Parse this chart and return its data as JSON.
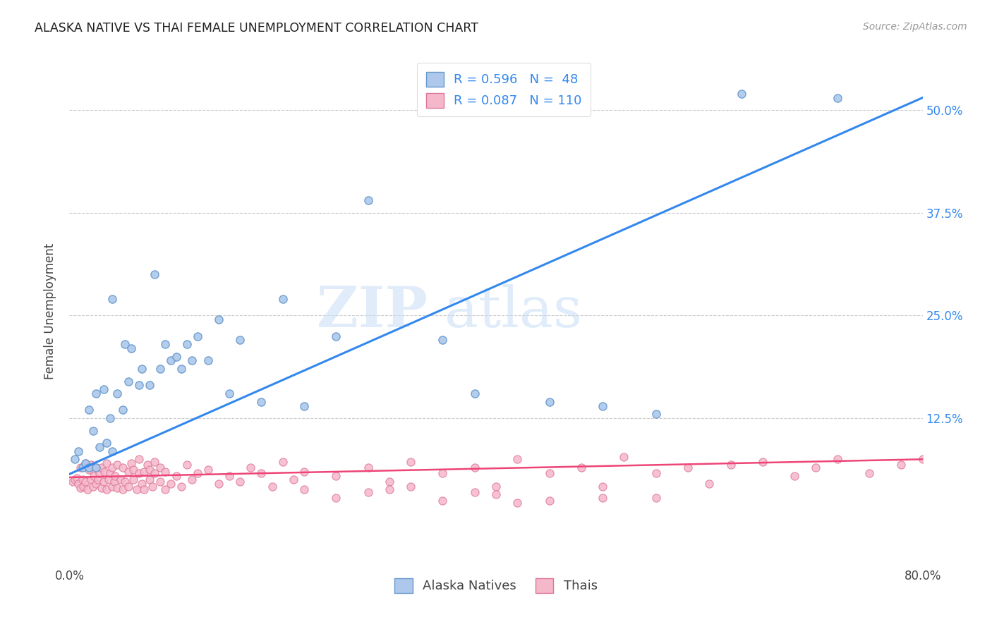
{
  "title": "ALASKA NATIVE VS THAI FEMALE UNEMPLOYMENT CORRELATION CHART",
  "source": "Source: ZipAtlas.com",
  "ylabel": "Female Unemployment",
  "xlim": [
    0.0,
    0.8
  ],
  "ylim": [
    -0.055,
    0.565
  ],
  "xticks": [
    0.0,
    0.2,
    0.4,
    0.6,
    0.8
  ],
  "xtick_labels": [
    "0.0%",
    "",
    "",
    "",
    "80.0%"
  ],
  "ytick_labels": [
    "12.5%",
    "25.0%",
    "37.5%",
    "50.0%"
  ],
  "ytick_vals": [
    0.125,
    0.25,
    0.375,
    0.5
  ],
  "alaska_color": "#adc8ea",
  "alaska_edge": "#6699cc",
  "thai_color": "#f5b8ca",
  "thai_edge": "#dd7799",
  "line_alaska_color": "#3388ee",
  "line_thai_color": "#ee4477",
  "alaska_R": 0.596,
  "alaska_N": 48,
  "thai_R": 0.087,
  "thai_N": 110,
  "legend_label_alaska": "Alaska Natives",
  "legend_label_thai": "Thais",
  "watermark_zip": "ZIP",
  "watermark_atlas": "atlas",
  "alaska_line_x0": 0.0,
  "alaska_line_y0": 0.057,
  "alaska_line_x1": 0.8,
  "alaska_line_y1": 0.515,
  "thai_line_x0": 0.0,
  "thai_line_y0": 0.053,
  "thai_line_x1": 0.8,
  "thai_line_y1": 0.075,
  "alaska_x": [
    0.005,
    0.008,
    0.012,
    0.015,
    0.018,
    0.018,
    0.022,
    0.025,
    0.025,
    0.028,
    0.032,
    0.035,
    0.038,
    0.04,
    0.04,
    0.045,
    0.05,
    0.052,
    0.055,
    0.058,
    0.065,
    0.068,
    0.075,
    0.08,
    0.085,
    0.09,
    0.095,
    0.1,
    0.105,
    0.11,
    0.115,
    0.12,
    0.13,
    0.14,
    0.15,
    0.16,
    0.18,
    0.2,
    0.22,
    0.25,
    0.28,
    0.35,
    0.38,
    0.45,
    0.5,
    0.55,
    0.63,
    0.72
  ],
  "alaska_y": [
    0.075,
    0.085,
    0.065,
    0.07,
    0.065,
    0.135,
    0.11,
    0.065,
    0.155,
    0.09,
    0.16,
    0.095,
    0.125,
    0.085,
    0.27,
    0.155,
    0.135,
    0.215,
    0.17,
    0.21,
    0.165,
    0.185,
    0.165,
    0.3,
    0.185,
    0.215,
    0.195,
    0.2,
    0.185,
    0.215,
    0.195,
    0.225,
    0.195,
    0.245,
    0.155,
    0.22,
    0.145,
    0.27,
    0.14,
    0.225,
    0.39,
    0.22,
    0.155,
    0.145,
    0.14,
    0.13,
    0.52,
    0.515
  ],
  "thai_x": [
    0.003,
    0.005,
    0.007,
    0.008,
    0.01,
    0.01,
    0.012,
    0.013,
    0.015,
    0.015,
    0.017,
    0.018,
    0.02,
    0.02,
    0.022,
    0.023,
    0.025,
    0.025,
    0.027,
    0.028,
    0.03,
    0.03,
    0.032,
    0.033,
    0.035,
    0.035,
    0.037,
    0.038,
    0.04,
    0.04,
    0.042,
    0.043,
    0.045,
    0.045,
    0.048,
    0.05,
    0.05,
    0.052,
    0.055,
    0.055,
    0.058,
    0.06,
    0.06,
    0.063,
    0.065,
    0.065,
    0.068,
    0.07,
    0.07,
    0.073,
    0.075,
    0.075,
    0.078,
    0.08,
    0.08,
    0.085,
    0.085,
    0.09,
    0.09,
    0.095,
    0.1,
    0.105,
    0.11,
    0.115,
    0.12,
    0.13,
    0.14,
    0.15,
    0.16,
    0.17,
    0.18,
    0.19,
    0.2,
    0.21,
    0.22,
    0.25,
    0.28,
    0.3,
    0.32,
    0.35,
    0.38,
    0.4,
    0.42,
    0.45,
    0.48,
    0.5,
    0.52,
    0.55,
    0.58,
    0.62,
    0.65,
    0.68,
    0.7,
    0.72,
    0.75,
    0.78,
    0.8,
    0.35,
    0.4,
    0.25,
    0.3,
    0.45,
    0.38,
    0.55,
    0.32,
    0.42,
    0.28,
    0.22,
    0.5,
    0.6
  ],
  "thai_y": [
    0.048,
    0.05,
    0.052,
    0.045,
    0.04,
    0.065,
    0.05,
    0.042,
    0.048,
    0.07,
    0.038,
    0.062,
    0.05,
    0.068,
    0.042,
    0.055,
    0.045,
    0.065,
    0.05,
    0.058,
    0.04,
    0.065,
    0.048,
    0.06,
    0.038,
    0.07,
    0.05,
    0.058,
    0.042,
    0.065,
    0.048,
    0.055,
    0.04,
    0.068,
    0.05,
    0.038,
    0.065,
    0.048,
    0.06,
    0.042,
    0.07,
    0.05,
    0.062,
    0.038,
    0.058,
    0.075,
    0.045,
    0.06,
    0.038,
    0.068,
    0.05,
    0.062,
    0.042,
    0.058,
    0.072,
    0.048,
    0.065,
    0.038,
    0.06,
    0.045,
    0.055,
    0.042,
    0.068,
    0.05,
    0.058,
    0.062,
    0.045,
    0.055,
    0.048,
    0.065,
    0.058,
    0.042,
    0.072,
    0.05,
    0.06,
    0.055,
    0.065,
    0.048,
    0.072,
    0.058,
    0.065,
    0.042,
    0.075,
    0.058,
    0.065,
    0.042,
    0.078,
    0.058,
    0.065,
    0.068,
    0.072,
    0.055,
    0.065,
    0.075,
    0.058,
    0.068,
    0.075,
    0.025,
    0.032,
    0.028,
    0.038,
    0.025,
    0.035,
    0.028,
    0.042,
    0.022,
    0.035,
    0.038,
    0.028,
    0.045
  ]
}
